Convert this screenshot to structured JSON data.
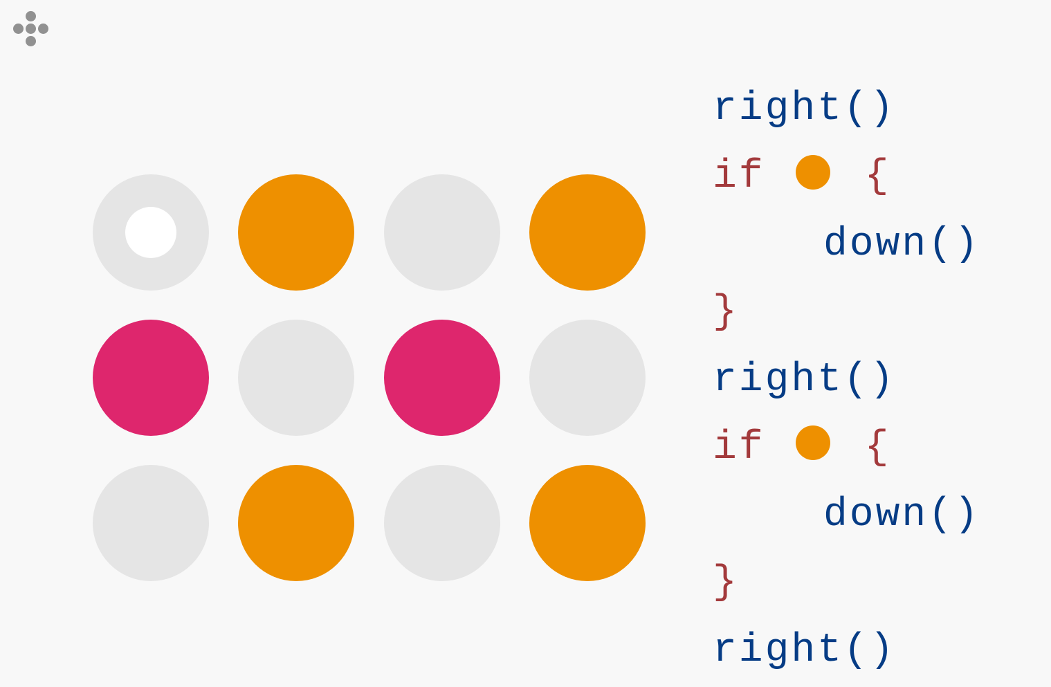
{
  "colors": {
    "empty": "#e5e5e5",
    "orange": "#ee9000",
    "pink": "#de266d",
    "robot": "#ffffff",
    "function": "#063c85",
    "keyword": "#a33a3c",
    "menu": "#919191"
  },
  "menu_icon": "dpad-dots-icon",
  "grid": {
    "rows": [
      [
        "empty",
        "orange",
        "empty",
        "orange"
      ],
      [
        "pink",
        "empty",
        "pink",
        "empty"
      ],
      [
        "empty",
        "orange",
        "empty",
        "orange"
      ]
    ],
    "robot": {
      "row": 0,
      "col": 0
    }
  },
  "code": [
    {
      "type": "call",
      "text": "right()",
      "indent": 0
    },
    {
      "type": "if",
      "keyword": "if",
      "condition": "orange",
      "open": "{",
      "indent": 0
    },
    {
      "type": "call",
      "text": "down()",
      "indent": 1
    },
    {
      "type": "close",
      "text": "}",
      "indent": 0
    },
    {
      "type": "call",
      "text": "right()",
      "indent": 0
    },
    {
      "type": "if",
      "keyword": "if",
      "condition": "orange",
      "open": "{",
      "indent": 0
    },
    {
      "type": "call",
      "text": "down()",
      "indent": 1
    },
    {
      "type": "close",
      "text": "}",
      "indent": 0
    },
    {
      "type": "call",
      "text": "right()",
      "indent": 0
    }
  ]
}
